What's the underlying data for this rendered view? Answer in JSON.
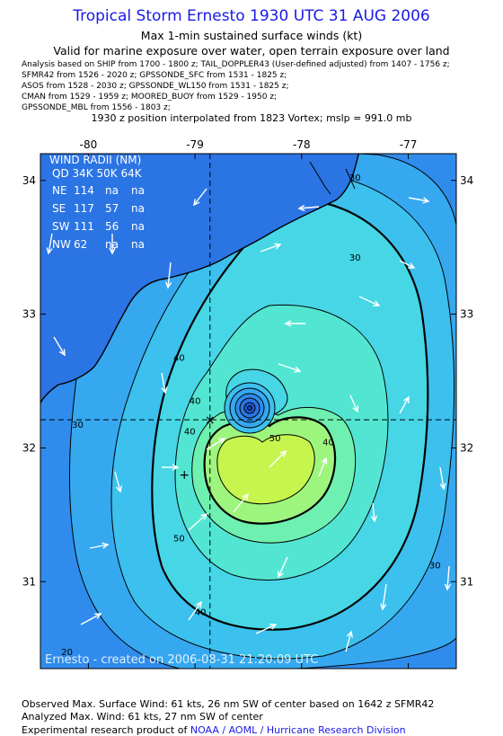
{
  "header": {
    "title": "Tropical Storm Ernesto 1930 UTC 31 AUG 2006",
    "subtitle1": "Max 1-min sustained surface winds (kt)",
    "subtitle2": "Valid for marine exposure over water, open terrain exposure over land",
    "sources": [
      "Analysis based on  SHIP from 1700 - 1800 z;  TAIL_DOPPLER43 (User-defined adjusted) from 1407 - 1756 z;",
      "SFMR42 from 1526 - 2020 z;  GPSSONDE_SFC from 1531 - 1825 z;",
      "ASOS from 1528 - 2030 z;  GPSSONDE_WL150 from 1531 - 1825 z;",
      "CMAN from 1529 - 1959 z;  MOORED_BUOY from 1529 - 1950 z;",
      "GPSSONDE_MBL from 1556 - 1803 z;"
    ],
    "vortex_line": "1930 z position interpolated from 1823 Vortex; mslp = 991.0 mb"
  },
  "map": {
    "lon_ticks": [
      "-80",
      "-79",
      "-78",
      "-77"
    ],
    "lat_ticks": [
      "34",
      "33",
      "32",
      "31"
    ],
    "lon_range": [
      -80.45,
      -76.55
    ],
    "lat_range": [
      30.35,
      34.2
    ],
    "center": {
      "lon": -78.86,
      "lat": 32.21
    },
    "max_wind_position": {
      "lon": -79.1,
      "lat": 31.8
    },
    "contour_labels": [
      {
        "text": "30",
        "lon": -77.5,
        "lat": 34.0
      },
      {
        "text": "30",
        "lon": -77.5,
        "lat": 33.4
      },
      {
        "text": "40",
        "lon": -79.15,
        "lat": 32.65
      },
      {
        "text": "40",
        "lon": -79.0,
        "lat": 32.33
      },
      {
        "text": "40",
        "lon": -79.05,
        "lat": 32.1
      },
      {
        "text": "50",
        "lon": -78.25,
        "lat": 32.05
      },
      {
        "text": "40",
        "lon": -77.75,
        "lat": 32.02
      },
      {
        "text": "30",
        "lon": -80.1,
        "lat": 32.15
      },
      {
        "text": "50",
        "lon": -79.15,
        "lat": 31.3
      },
      {
        "text": "40",
        "lon": -78.95,
        "lat": 30.75
      },
      {
        "text": "30",
        "lon": -76.75,
        "lat": 31.1
      },
      {
        "text": "20",
        "lon": -80.2,
        "lat": 30.45
      }
    ],
    "wind_radii": {
      "title": "WIND RADII (NM)",
      "header": [
        "QD",
        "34K",
        "50K",
        "64K"
      ],
      "rows": [
        [
          "NE",
          "114",
          "na",
          "na"
        ],
        [
          "SE",
          "117",
          "57",
          "na"
        ],
        [
          "SW",
          "111",
          "56",
          "na"
        ],
        [
          "NW",
          "62",
          "na",
          "na"
        ]
      ]
    },
    "watermark": "Ernesto - created on 2006-08-31 21:20:09 UTC"
  },
  "footer": {
    "observed": "Observed Max. Surface Wind: 61 kts, 26 nm SW of center based on 1642 z SFMR42",
    "analyzed": "Analyzed Max. Wind: 61 kts, 27 nm SW of center",
    "credit_prefix": "Experimental research product of",
    "credit_link": "NOAA / AOML / Hurricane Research Division"
  },
  "colors": {
    "title": "#1a1ae6",
    "ocean_20": "#2f8cec",
    "ring_30": "#35a8f0",
    "ring_35": "#3cc0ee",
    "ring_40": "#46d6e6",
    "ring_45": "#52e6d2",
    "ring_50": "#6ef0b0",
    "ring_55": "#9ef57e",
    "ring_60": "#c6f54e",
    "land": "#2b74e4"
  }
}
